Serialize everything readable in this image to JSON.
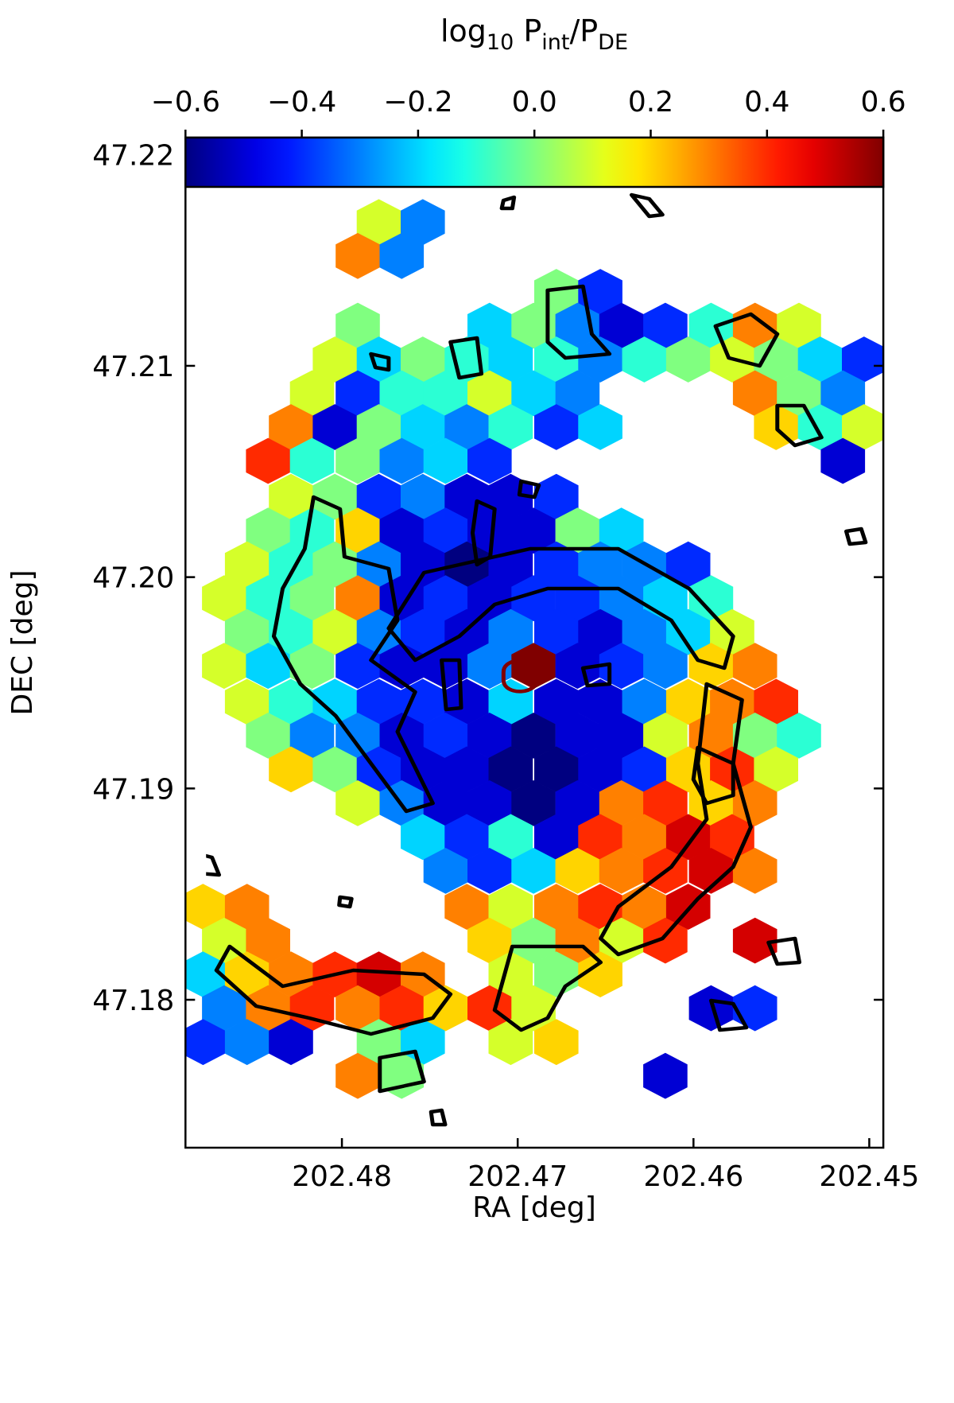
{
  "chart_data": {
    "type": "hexbin",
    "x_label": "RA [deg]",
    "y_label": "DEC [deg]",
    "xlim": [
      202.4889,
      202.4492
    ],
    "ylim": [
      47.173,
      47.2208
    ],
    "xticks": [
      202.48,
      202.47,
      202.46,
      202.45
    ],
    "yticks": [
      47.18,
      47.19,
      {
        "value": 47.2,
        "label": "47.20"
      },
      47.21,
      47.22
    ],
    "colorbar": {
      "label": [
        {
          "text": "log",
          "sub": false
        },
        {
          "text": "10",
          "sub": true
        },
        {
          "text": " P",
          "sub": false
        },
        {
          "text": "int",
          "sub": true
        },
        {
          "text": "/P",
          "sub": false
        },
        {
          "text": "DE",
          "sub": true
        }
      ],
      "cmap": "jet",
      "lim": [
        -0.6,
        0.6
      ],
      "ticks": [
        {
          "value": -0.6,
          "label": "−0.6"
        },
        {
          "value": -0.4,
          "label": "−0.4"
        },
        {
          "value": -0.2,
          "label": "−0.2"
        },
        {
          "value": 0,
          "label": "0.0"
        },
        0.2,
        0.4,
        0.6
      ]
    },
    "x": [
      202.4779,
      202.4754,
      202.4791,
      202.4766,
      202.4678,
      202.4653,
      202.4791,
      202.4716,
      202.4691,
      202.4666,
      202.4641,
      202.4616,
      202.459,
      202.4565,
      202.454,
      202.4804,
      202.4779,
      202.4754,
      202.4729,
      202.4704,
      202.4678,
      202.4653,
      202.4628,
      202.4603,
      202.4578,
      202.4553,
      202.4528,
      202.4503,
      202.4817,
      202.4791,
      202.4766,
      202.4741,
      202.4716,
      202.4691,
      202.4666,
      202.4565,
      202.454,
      202.4515,
      202.4829,
      202.4804,
      202.4779,
      202.4754,
      202.4729,
      202.4704,
      202.4678,
      202.4653,
      202.4553,
      202.4528,
      202.4503,
      202.4842,
      202.4817,
      202.4791,
      202.4766,
      202.4741,
      202.4716,
      202.4515,
      202.4829,
      202.4804,
      202.4779,
      202.4754,
      202.4729,
      202.4704,
      202.4678,
      202.4842,
      202.4817,
      202.4791,
      202.4766,
      202.4741,
      202.4716,
      202.4691,
      202.4666,
      202.4641,
      202.4854,
      202.4829,
      202.4804,
      202.4779,
      202.4754,
      202.4729,
      202.4704,
      202.4678,
      202.4653,
      202.4628,
      202.4603,
      202.4867,
      202.4842,
      202.4817,
      202.4791,
      202.4766,
      202.4741,
      202.4716,
      202.4691,
      202.4666,
      202.4641,
      202.4616,
      202.459,
      202.4854,
      202.4829,
      202.4804,
      202.4779,
      202.4754,
      202.4729,
      202.4704,
      202.4678,
      202.4653,
      202.4628,
      202.4603,
      202.4578,
      202.4867,
      202.4842,
      202.4817,
      202.4791,
      202.4766,
      202.4741,
      202.4716,
      202.4691,
      202.4666,
      202.4641,
      202.4616,
      202.459,
      202.4565,
      202.4854,
      202.4829,
      202.4804,
      202.4779,
      202.4754,
      202.4729,
      202.4704,
      202.4678,
      202.4653,
      202.4628,
      202.4603,
      202.4578,
      202.4553,
      202.4842,
      202.4817,
      202.4791,
      202.4766,
      202.4741,
      202.4716,
      202.4691,
      202.4666,
      202.4641,
      202.4616,
      202.459,
      202.4565,
      202.454,
      202.4829,
      202.4804,
      202.4779,
      202.4754,
      202.4729,
      202.4704,
      202.4678,
      202.4653,
      202.4628,
      202.4603,
      202.4578,
      202.4553,
      202.4791,
      202.4766,
      202.4741,
      202.4716,
      202.4691,
      202.4666,
      202.4641,
      202.4616,
      202.459,
      202.4565,
      202.4754,
      202.4729,
      202.4704,
      202.4678,
      202.4653,
      202.4628,
      202.4603,
      202.4578,
      202.4741,
      202.4716,
      202.4691,
      202.4666,
      202.4641,
      202.4616,
      202.459,
      202.4565,
      202.4879,
      202.4854,
      202.4729,
      202.4704,
      202.4678,
      202.4653,
      202.4628,
      202.4603,
      202.4867,
      202.4842,
      202.4716,
      202.4691,
      202.4666,
      202.4641,
      202.4616,
      202.4565,
      202.4879,
      202.4854,
      202.4829,
      202.4804,
      202.4779,
      202.4754,
      202.4704,
      202.4678,
      202.4653,
      202.4867,
      202.4842,
      202.4817,
      202.4791,
      202.4766,
      202.4741,
      202.4716,
      202.4691,
      202.459,
      202.4565,
      202.4879,
      202.4854,
      202.4829,
      202.4779,
      202.4754,
      202.4704,
      202.4678,
      202.4791,
      202.4766,
      202.4616
    ],
    "y": [
      47.2168,
      47.2168,
      47.2152,
      47.2152,
      47.2135,
      47.2135,
      47.2119,
      47.2119,
      47.2119,
      47.2119,
      47.2119,
      47.2119,
      47.2119,
      47.2119,
      47.2119,
      47.2103,
      47.2103,
      47.2103,
      47.2103,
      47.2103,
      47.2103,
      47.2103,
      47.2103,
      47.2103,
      47.2103,
      47.2103,
      47.2103,
      47.2103,
      47.2087,
      47.2087,
      47.2087,
      47.2087,
      47.2087,
      47.2087,
      47.2087,
      47.2087,
      47.2087,
      47.2087,
      47.2071,
      47.2071,
      47.2071,
      47.2071,
      47.2071,
      47.2071,
      47.2071,
      47.2071,
      47.2071,
      47.2071,
      47.2071,
      47.2055,
      47.2055,
      47.2055,
      47.2055,
      47.2055,
      47.2055,
      47.2055,
      47.2038,
      47.2038,
      47.2038,
      47.2038,
      47.2038,
      47.2038,
      47.2038,
      47.2022,
      47.2022,
      47.2022,
      47.2022,
      47.2022,
      47.2022,
      47.2022,
      47.2022,
      47.2022,
      47.2006,
      47.2006,
      47.2006,
      47.2006,
      47.2006,
      47.2006,
      47.2006,
      47.2006,
      47.2006,
      47.2006,
      47.2006,
      47.199,
      47.199,
      47.199,
      47.199,
      47.199,
      47.199,
      47.199,
      47.199,
      47.199,
      47.199,
      47.199,
      47.199,
      47.1974,
      47.1974,
      47.1974,
      47.1974,
      47.1974,
      47.1974,
      47.1974,
      47.1974,
      47.1974,
      47.1974,
      47.1974,
      47.1974,
      47.1958,
      47.1958,
      47.1958,
      47.1958,
      47.1958,
      47.1958,
      47.1958,
      47.1958,
      47.1958,
      47.1958,
      47.1958,
      47.1958,
      47.1958,
      47.1941,
      47.1941,
      47.1941,
      47.1941,
      47.1941,
      47.1941,
      47.1941,
      47.1941,
      47.1941,
      47.1941,
      47.1941,
      47.1941,
      47.1941,
      47.1925,
      47.1925,
      47.1925,
      47.1925,
      47.1925,
      47.1925,
      47.1925,
      47.1925,
      47.1925,
      47.1925,
      47.1925,
      47.1925,
      47.1925,
      47.1909,
      47.1909,
      47.1909,
      47.1909,
      47.1909,
      47.1909,
      47.1909,
      47.1909,
      47.1909,
      47.1909,
      47.1909,
      47.1909,
      47.1893,
      47.1893,
      47.1893,
      47.1893,
      47.1893,
      47.1893,
      47.1893,
      47.1893,
      47.1893,
      47.1893,
      47.1877,
      47.1877,
      47.1877,
      47.1877,
      47.1877,
      47.1877,
      47.1877,
      47.1877,
      47.1861,
      47.1861,
      47.1861,
      47.1861,
      47.1861,
      47.1861,
      47.1861,
      47.1861,
      47.1844,
      47.1844,
      47.1844,
      47.1844,
      47.1844,
      47.1844,
      47.1844,
      47.1844,
      47.1828,
      47.1828,
      47.1828,
      47.1828,
      47.1828,
      47.1828,
      47.1828,
      47.1828,
      47.1812,
      47.1812,
      47.1812,
      47.1812,
      47.1812,
      47.1812,
      47.1812,
      47.1812,
      47.1812,
      47.1796,
      47.1796,
      47.1796,
      47.1796,
      47.1796,
      47.1796,
      47.1796,
      47.1796,
      47.1796,
      47.1796,
      47.178,
      47.178,
      47.178,
      47.178,
      47.178,
      47.178,
      47.178,
      47.1764,
      47.1764,
      47.1764
    ],
    "values": [
      0.1,
      -0.3,
      0.3,
      -0.3,
      0.0,
      -0.4,
      0.0,
      -0.2,
      0.0,
      -0.3,
      -0.5,
      -0.4,
      -0.1,
      0.3,
      0.1,
      0.1,
      -0.2,
      0.0,
      -0.1,
      -0.2,
      -0.1,
      -0.3,
      -0.1,
      0.0,
      0.1,
      0.0,
      -0.2,
      -0.4,
      0.1,
      -0.4,
      -0.1,
      -0.1,
      0.1,
      -0.2,
      -0.3,
      0.3,
      0.0,
      -0.3,
      0.3,
      -0.5,
      0.0,
      -0.2,
      -0.3,
      -0.1,
      -0.4,
      -0.2,
      0.2,
      -0.1,
      0.1,
      0.4,
      -0.1,
      0.0,
      -0.3,
      -0.2,
      -0.4,
      -0.5,
      0.1,
      0.0,
      -0.4,
      -0.3,
      -0.5,
      -0.5,
      -0.4,
      0.0,
      -0.1,
      0.2,
      -0.5,
      -0.4,
      -0.5,
      -0.5,
      0.0,
      -0.2,
      0.1,
      -0.1,
      0.0,
      -0.3,
      -0.5,
      -0.6,
      -0.5,
      -0.4,
      -0.3,
      -0.3,
      -0.4,
      0.1,
      -0.1,
      0.0,
      0.3,
      -0.5,
      -0.4,
      -0.5,
      -0.4,
      -0.4,
      -0.3,
      -0.2,
      -0.1,
      0.0,
      -0.1,
      0.1,
      -0.3,
      -0.4,
      -0.5,
      -0.3,
      -0.4,
      -0.5,
      -0.3,
      -0.2,
      0.1,
      0.1,
      -0.2,
      0.0,
      -0.4,
      -0.5,
      -0.5,
      -0.3,
      0.6,
      -0.5,
      -0.4,
      -0.3,
      0.2,
      0.3,
      0.1,
      -0.1,
      -0.2,
      -0.4,
      -0.4,
      -0.5,
      -0.2,
      -0.5,
      -0.5,
      -0.3,
      0.2,
      0.3,
      0.4,
      0.0,
      -0.3,
      -0.3,
      -0.5,
      -0.4,
      -0.5,
      -0.6,
      -0.5,
      -0.5,
      0.1,
      0.3,
      0.0,
      -0.1,
      0.2,
      0.0,
      -0.4,
      -0.5,
      -0.5,
      -0.6,
      -0.6,
      -0.5,
      -0.4,
      0.2,
      0.4,
      0.1,
      0.1,
      -0.3,
      -0.5,
      -0.5,
      -0.6,
      -0.5,
      0.3,
      0.4,
      0.2,
      0.3,
      -0.2,
      -0.4,
      -0.1,
      -0.5,
      0.4,
      0.3,
      0.5,
      0.4,
      -0.3,
      -0.4,
      -0.2,
      0.2,
      0.3,
      0.4,
      0.5,
      0.3,
      0.2,
      0.3,
      0.3,
      0.1,
      0.3,
      0.4,
      0.3,
      0.5,
      0.1,
      0.3,
      0.2,
      0.0,
      0.3,
      0.1,
      0.4,
      0.5,
      -0.2,
      0.2,
      0.3,
      0.4,
      0.5,
      0.3,
      0.1,
      0.0,
      0.2,
      -0.3,
      0.3,
      0.4,
      0.3,
      0.4,
      0.2,
      0.4,
      0.1,
      -0.5,
      -0.4,
      -0.4,
      -0.3,
      -0.5,
      0.0,
      -0.2,
      0.1,
      0.2,
      0.3,
      0.0,
      -0.5
    ]
  }
}
